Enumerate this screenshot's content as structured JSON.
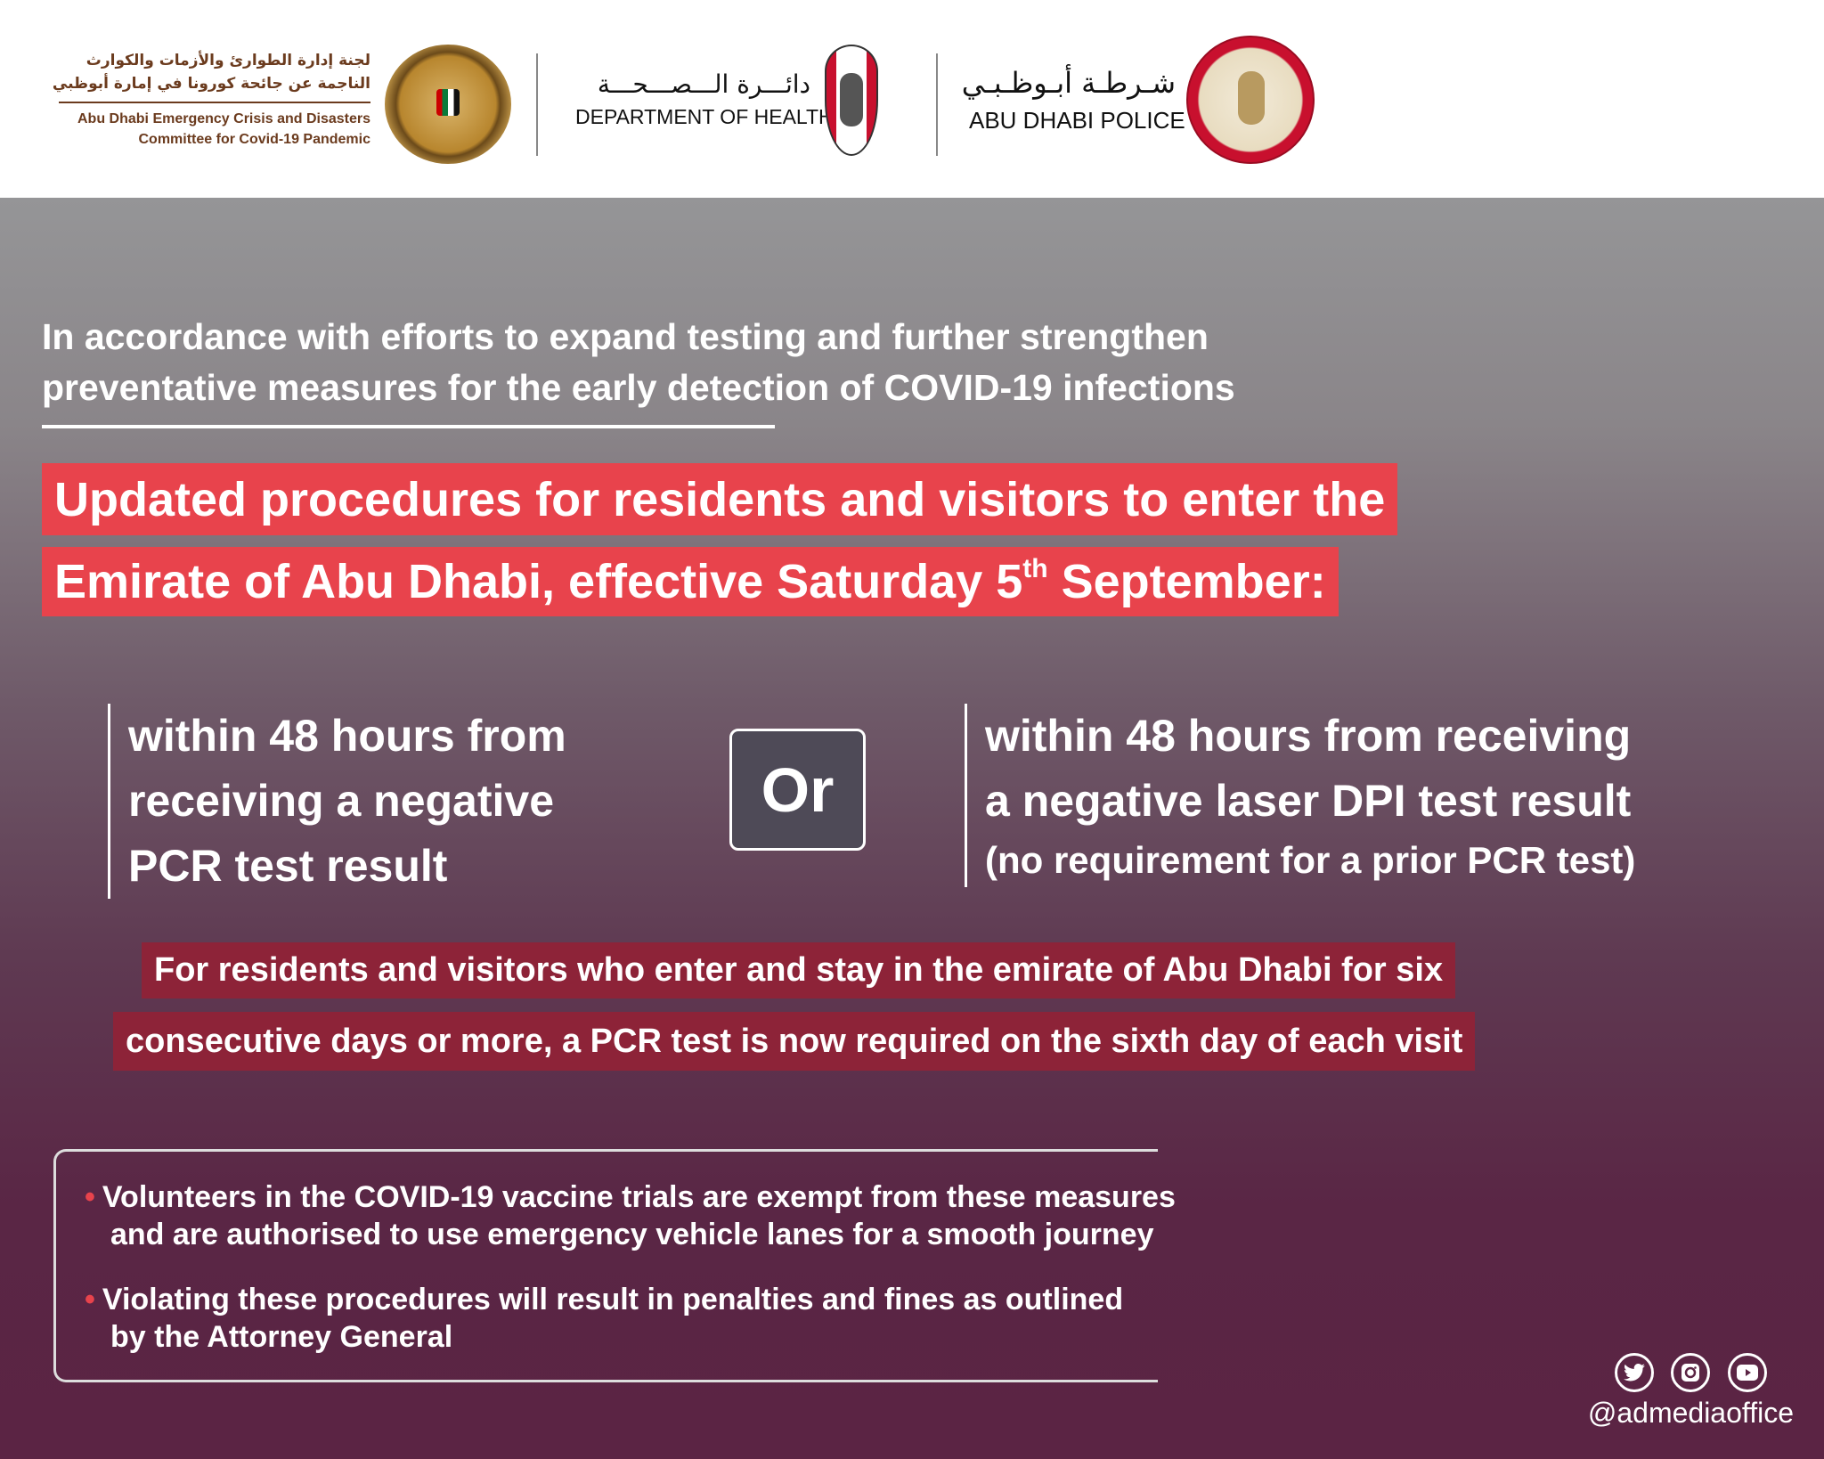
{
  "header": {
    "committee": {
      "arabic_line1": "لجنة إدارة الطوارئ والأزمات والكوارث",
      "arabic_line2": "الناجمة عن جائحة كورونا في إمارة أبوظبي",
      "english_line1": "Abu Dhabi Emergency Crisis and Disasters",
      "english_line2": "Committee for Covid-19 Pandemic"
    },
    "health": {
      "arabic": "دائـــرة الـــصـــحـــة",
      "english": "DEPARTMENT OF HEALTH"
    },
    "police": {
      "arabic": "شـرطـة أبـوظـبـي",
      "english": "ABU DHABI POLICE"
    }
  },
  "intro": {
    "line1": "In accordance with efforts to expand testing and further strengthen",
    "line2": "preventative measures for the early detection of COVID-19 infections"
  },
  "headline": {
    "line1": "Updated procedures for residents and visitors to enter the",
    "line2_pre": "Emirate of Abu Dhabi, effective Saturday 5",
    "line2_sup": "th",
    "line2_post": " September:"
  },
  "options": {
    "left": [
      "within 48 hours from",
      "receiving a negative",
      "PCR test result"
    ],
    "separator": "Or",
    "right": [
      "within 48 hours from receiving",
      "a negative laser DPI test result"
    ],
    "right_note": "(no requirement for a prior PCR test)"
  },
  "notice": {
    "line1": "For residents and visitors who enter and stay in the emirate of Abu Dhabi for six",
    "line2": "consecutive days or more, a PCR test is now required on the sixth day of each visit"
  },
  "bullets": [
    {
      "line1": "Volunteers in the COVID-19 vaccine trials are exempt from these measures",
      "line2": "and are authorised to use emergency vehicle lanes for a smooth journey"
    },
    {
      "line1": "Violating these procedures will result in penalties and fines as outlined",
      "line2": "by the Attorney General"
    }
  ],
  "social": {
    "icons": [
      "twitter-icon",
      "instagram-icon",
      "youtube-icon"
    ],
    "handle": "@admediaoffice"
  },
  "colors": {
    "headline_red": "#e8434c",
    "notice_red": "#8d2338",
    "accent_gold": "#b8862e",
    "police_red": "#c8102e"
  }
}
